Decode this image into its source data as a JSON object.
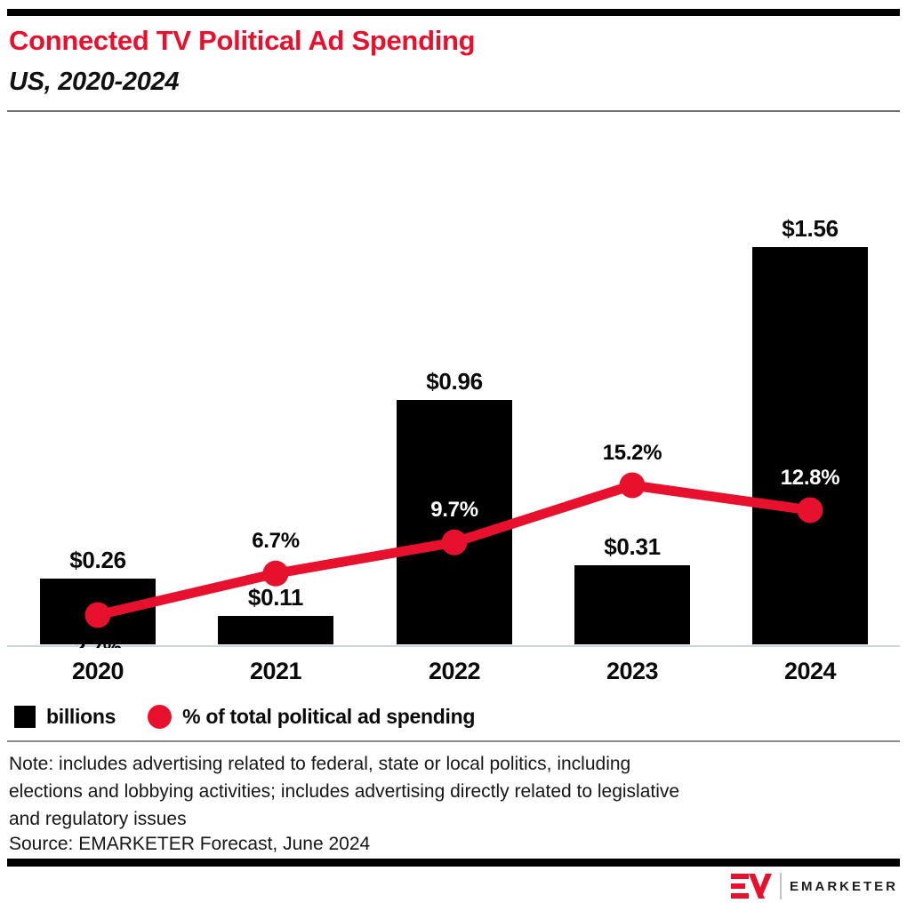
{
  "header": {
    "title": "Connected TV Political Ad Spending",
    "subtitle": "US, 2020-2024"
  },
  "chart_data": {
    "type": "bar",
    "combo": "bar+line",
    "title": "Connected TV Political Ad Spending",
    "subtitle": "US, 2020-2024",
    "categories": [
      "2020",
      "2021",
      "2022",
      "2023",
      "2024"
    ],
    "series": [
      {
        "name": "billions",
        "type": "bar",
        "unit": "US$ billions",
        "values": [
          0.26,
          0.11,
          0.96,
          0.31,
          1.56
        ],
        "labels": [
          "$0.26",
          "$0.11",
          "$0.96",
          "$0.31",
          "$1.56"
        ],
        "color": "#000000"
      },
      {
        "name": "% of total political ad spending",
        "type": "line",
        "unit": "%",
        "values": [
          2.7,
          6.7,
          9.7,
          15.2,
          12.8
        ],
        "labels": [
          "2.7%",
          "6.7%",
          "9.7%",
          "15.2%",
          "12.8%"
        ],
        "color": "#e8112d",
        "label_positions": [
          "below",
          "above",
          "above",
          "above",
          "above"
        ],
        "label_colors": [
          "#000000",
          "#000000",
          "#ffffff",
          "#000000",
          "#ffffff"
        ]
      }
    ],
    "legend_position": "bottom",
    "grid": false,
    "ylim_bars": [
      0,
      1.7
    ],
    "ylim_pct": [
      0,
      18
    ]
  },
  "legend": {
    "items": [
      {
        "swatch": "square",
        "color": "#000000",
        "label": "billions"
      },
      {
        "swatch": "circle",
        "color": "#e8112d",
        "label": "% of total political ad spending"
      }
    ]
  },
  "notes": {
    "note_lines": [
      "Note: includes advertising related to federal, state or local politics, including",
      "elections and lobbying activities; includes advertising directly related to legislative",
      "and regulatory issues"
    ],
    "source": "Source: EMARKETER Forecast, June 2024"
  },
  "footer": {
    "brand": "EMARKETER"
  },
  "colors": {
    "accent_red": "#e8112d",
    "bar_black": "#000000",
    "axis_line": "#ccd4e2",
    "header_rule": "#6f6f6f",
    "legend_rule": "#8c8c8c"
  }
}
